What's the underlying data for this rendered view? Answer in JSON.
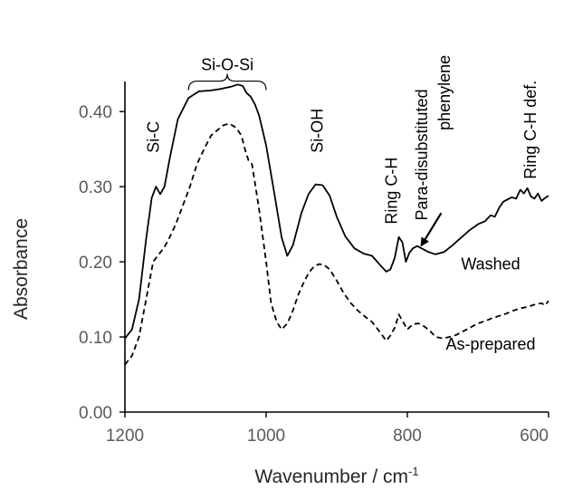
{
  "chart_data": {
    "type": "line",
    "title": "",
    "xlabel": "Wavenumber / cm",
    "xlabel_superscript": "-1",
    "ylabel": "Absorbance",
    "x_reversed": true,
    "xlim": [
      1200,
      600
    ],
    "ylim": [
      0.0,
      0.44
    ],
    "xticks": [
      1200,
      1000,
      800,
      600
    ],
    "xtick_labels": [
      "1200",
      "1000",
      "800",
      "600"
    ],
    "yticks": [
      0.0,
      0.1,
      0.2,
      0.3,
      0.4
    ],
    "ytick_labels": [
      "0.00",
      "0.10",
      "0.20",
      "0.30",
      "0.40"
    ],
    "grid": false,
    "series": [
      {
        "name": "Washed",
        "line_style": "solid",
        "color": "#000000",
        "x": [
          1200,
          1190,
          1180,
          1170,
          1162,
          1156,
          1150,
          1144,
          1136,
          1125,
          1110,
          1095,
          1080,
          1065,
          1050,
          1040,
          1033,
          1028,
          1022,
          1016,
          1010,
          1000,
          990,
          978,
          970,
          962,
          950,
          940,
          930,
          920,
          910,
          900,
          888,
          875,
          862,
          850,
          838,
          830,
          824,
          818,
          812,
          807,
          802,
          797,
          792,
          786,
          780,
          770,
          760,
          748,
          736,
          724,
          712,
          700,
          690,
          682,
          676,
          670,
          664,
          658,
          652,
          646,
          640,
          635,
          630,
          625,
          620,
          615,
          610,
          605,
          600
        ],
        "values": [
          0.098,
          0.11,
          0.15,
          0.23,
          0.285,
          0.3,
          0.29,
          0.3,
          0.34,
          0.39,
          0.418,
          0.427,
          0.428,
          0.43,
          0.433,
          0.436,
          0.434,
          0.425,
          0.42,
          0.41,
          0.395,
          0.355,
          0.3,
          0.232,
          0.208,
          0.222,
          0.265,
          0.29,
          0.303,
          0.302,
          0.288,
          0.26,
          0.234,
          0.218,
          0.211,
          0.208,
          0.195,
          0.187,
          0.19,
          0.205,
          0.233,
          0.226,
          0.2,
          0.212,
          0.218,
          0.221,
          0.218,
          0.213,
          0.21,
          0.213,
          0.222,
          0.232,
          0.242,
          0.25,
          0.254,
          0.262,
          0.26,
          0.272,
          0.28,
          0.283,
          0.286,
          0.284,
          0.296,
          0.291,
          0.298,
          0.287,
          0.284,
          0.291,
          0.281,
          0.285,
          0.288
        ]
      },
      {
        "name": "As-prepared",
        "line_style": "dashed",
        "color": "#000000",
        "x": [
          1200,
          1190,
          1180,
          1170,
          1160,
          1152,
          1145,
          1138,
          1128,
          1118,
          1108,
          1098,
          1088,
          1078,
          1068,
          1060,
          1052,
          1045,
          1040,
          1035,
          1030,
          1025,
          1020,
          1015,
          1010,
          1000,
          993,
          985,
          978,
          970,
          962,
          955,
          948,
          940,
          932,
          925,
          918,
          910,
          900,
          890,
          880,
          870,
          860,
          850,
          840,
          830,
          824,
          818,
          812,
          806,
          800,
          792,
          784,
          776,
          768,
          760,
          750,
          740,
          730,
          720,
          710,
          700,
          690,
          680,
          670,
          660,
          650,
          640,
          630,
          620,
          610,
          605,
          600
        ],
        "values": [
          0.063,
          0.075,
          0.1,
          0.15,
          0.2,
          0.21,
          0.218,
          0.23,
          0.25,
          0.275,
          0.3,
          0.33,
          0.35,
          0.368,
          0.376,
          0.382,
          0.384,
          0.38,
          0.375,
          0.368,
          0.35,
          0.335,
          0.33,
          0.3,
          0.27,
          0.2,
          0.145,
          0.12,
          0.11,
          0.118,
          0.135,
          0.155,
          0.17,
          0.185,
          0.194,
          0.197,
          0.196,
          0.19,
          0.175,
          0.158,
          0.145,
          0.135,
          0.127,
          0.12,
          0.108,
          0.095,
          0.102,
          0.112,
          0.13,
          0.12,
          0.11,
          0.117,
          0.118,
          0.114,
          0.108,
          0.1,
          0.098,
          0.1,
          0.103,
          0.108,
          0.113,
          0.118,
          0.121,
          0.125,
          0.128,
          0.131,
          0.135,
          0.138,
          0.14,
          0.143,
          0.145,
          0.142,
          0.148
        ]
      }
    ],
    "annotations": [
      {
        "text": "Si-O-Si",
        "x": 1055,
        "y": 0.455,
        "orientation": "horizontal",
        "bracket": [
          1110,
          1000
        ]
      },
      {
        "text": "Si-C",
        "x": 1152,
        "y": 0.345,
        "orientation": "vertical"
      },
      {
        "text": "Si-OH",
        "x": 920,
        "y": 0.345,
        "orientation": "vertical"
      },
      {
        "text": "Ring C-H",
        "x": 815,
        "y": 0.25,
        "orientation": "vertical"
      },
      {
        "text": "Para-disubstituted",
        "x": 772,
        "y": 0.255,
        "orientation": "vertical"
      },
      {
        "text": "phenylene",
        "x": 740,
        "y": 0.375,
        "orientation": "vertical"
      },
      {
        "text": "Ring C-H def.",
        "x": 618,
        "y": 0.31,
        "orientation": "vertical"
      },
      {
        "text": "Washed",
        "x": 682,
        "y": 0.19,
        "orientation": "horizontal"
      },
      {
        "text": "As-prepared",
        "x": 682,
        "y": 0.083,
        "orientation": "horizontal"
      }
    ],
    "arrow": {
      "from": [
        752,
        0.265
      ],
      "to": [
        780,
        0.222
      ]
    }
  }
}
